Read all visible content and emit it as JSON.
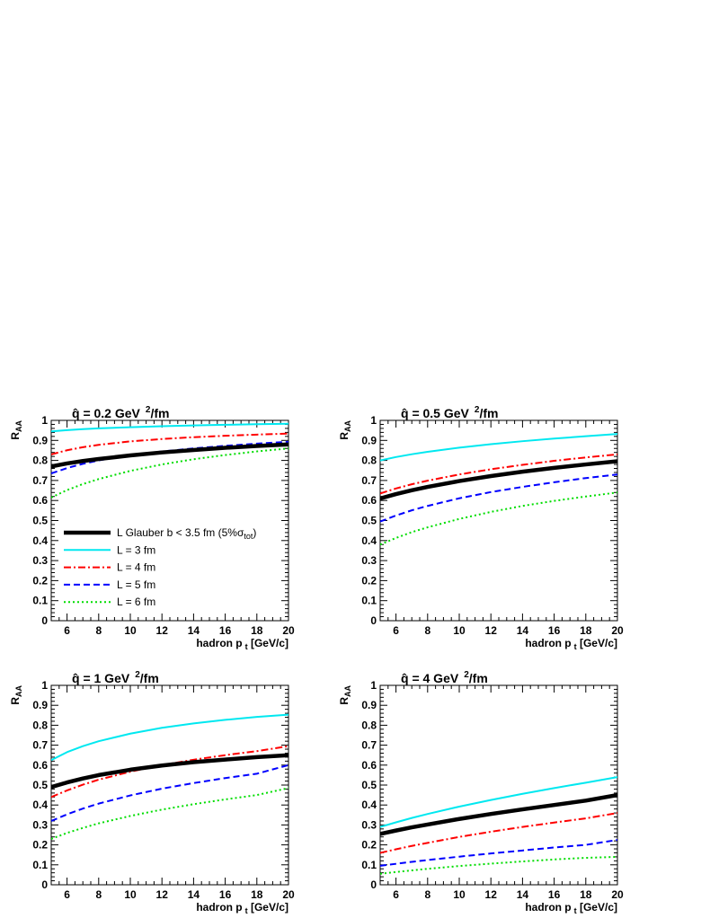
{
  "chart_data": [
    {
      "type": "line",
      "title": {
        "prefix": "q̂ = 0.2 GeV",
        "sup": "2",
        "suffix": "/fm"
      },
      "xlabel": {
        "main": "hadron p",
        "sub": "t",
        "rest": " [GeV/c]"
      },
      "ylabel": {
        "main": "R",
        "sub": "AA"
      },
      "xlim": [
        5,
        20
      ],
      "ylim": [
        0,
        1
      ],
      "xticks": [
        "6",
        "8",
        "10",
        "12",
        "14",
        "16",
        "18",
        "20"
      ],
      "yticks": [
        "0",
        "0.1",
        "0.2",
        "0.3",
        "0.4",
        "0.5",
        "0.6",
        "0.7",
        "0.8",
        "0.9",
        "1"
      ],
      "grid": false,
      "legend": {
        "position": "lower-left",
        "entries": [
          {
            "series": "glauber",
            "text": "L Glauber b < 3.5 fm (5%σ",
            "sub": "tot",
            "tail": ")"
          },
          {
            "series": "L3",
            "text": "L = 3 fm"
          },
          {
            "series": "L4",
            "text": "L = 4 fm"
          },
          {
            "series": "L5",
            "text": "L = 5 fm"
          },
          {
            "series": "L6",
            "text": "L = 6 fm"
          }
        ]
      },
      "series": [
        {
          "id": "glauber",
          "color": "#000000",
          "dash": "solid",
          "width": 4.5,
          "x": [
            5,
            6,
            7,
            8,
            10,
            12,
            14,
            16,
            18,
            20
          ],
          "y": [
            0.77,
            0.785,
            0.797,
            0.807,
            0.825,
            0.84,
            0.852,
            0.863,
            0.872,
            0.88
          ]
        },
        {
          "id": "L3",
          "color": "#00e8f0",
          "dash": "solid",
          "width": 2,
          "x": [
            5,
            6,
            7,
            8,
            10,
            12,
            14,
            16,
            18,
            20
          ],
          "y": [
            0.945,
            0.951,
            0.956,
            0.96,
            0.966,
            0.971,
            0.975,
            0.978,
            0.981,
            0.983
          ]
        },
        {
          "id": "L4",
          "color": "#ff0000",
          "dash": "dashdot",
          "width": 2,
          "x": [
            5,
            6,
            7,
            8,
            10,
            12,
            14,
            16,
            18,
            20
          ],
          "y": [
            0.83,
            0.851,
            0.866,
            0.878,
            0.895,
            0.907,
            0.916,
            0.923,
            0.929,
            0.934
          ]
        },
        {
          "id": "L5",
          "color": "#0000ff",
          "dash": "dashed",
          "width": 2,
          "x": [
            5,
            6,
            7,
            8,
            10,
            12,
            14,
            16,
            18,
            20
          ],
          "y": [
            0.735,
            0.762,
            0.783,
            0.8,
            0.826,
            0.845,
            0.86,
            0.873,
            0.884,
            0.893
          ]
        },
        {
          "id": "L6",
          "color": "#00dd00",
          "dash": "dotted",
          "width": 2,
          "x": [
            5,
            6,
            7,
            8,
            10,
            12,
            14,
            16,
            18,
            20
          ],
          "y": [
            0.615,
            0.652,
            0.682,
            0.707,
            0.748,
            0.78,
            0.806,
            0.827,
            0.845,
            0.86
          ]
        }
      ]
    },
    {
      "type": "line",
      "title": {
        "prefix": "q̂ = 0.5 GeV",
        "sup": "2",
        "suffix": "/fm"
      },
      "xlabel": {
        "main": "hadron p",
        "sub": "t",
        "rest": " [GeV/c]"
      },
      "ylabel": {
        "main": "R",
        "sub": "AA"
      },
      "xlim": [
        5,
        20
      ],
      "ylim": [
        0,
        1
      ],
      "xticks": [
        "6",
        "8",
        "10",
        "12",
        "14",
        "16",
        "18",
        "20"
      ],
      "yticks": [
        "0",
        "0.1",
        "0.2",
        "0.3",
        "0.4",
        "0.5",
        "0.6",
        "0.7",
        "0.8",
        "0.9",
        "1"
      ],
      "grid": false,
      "series": [
        {
          "id": "glauber",
          "color": "#000000",
          "dash": "solid",
          "width": 4.5,
          "x": [
            5,
            6,
            7,
            8,
            10,
            12,
            14,
            16,
            18,
            20
          ],
          "y": [
            0.61,
            0.632,
            0.651,
            0.668,
            0.697,
            0.722,
            0.744,
            0.763,
            0.78,
            0.796
          ]
        },
        {
          "id": "L3",
          "color": "#00e8f0",
          "dash": "solid",
          "width": 2,
          "x": [
            5,
            6,
            7,
            8,
            10,
            12,
            14,
            16,
            18,
            20
          ],
          "y": [
            0.8,
            0.817,
            0.831,
            0.843,
            0.864,
            0.881,
            0.896,
            0.909,
            0.921,
            0.932
          ]
        },
        {
          "id": "L4",
          "color": "#ff0000",
          "dash": "dashdot",
          "width": 2,
          "x": [
            5,
            6,
            7,
            8,
            10,
            12,
            14,
            16,
            18,
            20
          ],
          "y": [
            0.635,
            0.66,
            0.681,
            0.699,
            0.73,
            0.756,
            0.778,
            0.798,
            0.815,
            0.83
          ]
        },
        {
          "id": "L5",
          "color": "#0000ff",
          "dash": "dashed",
          "width": 2,
          "x": [
            5,
            6,
            7,
            8,
            10,
            12,
            14,
            16,
            18,
            20
          ],
          "y": [
            0.495,
            0.525,
            0.551,
            0.573,
            0.611,
            0.642,
            0.668,
            0.691,
            0.712,
            0.73
          ]
        },
        {
          "id": "L6",
          "color": "#00dd00",
          "dash": "dotted",
          "width": 2,
          "x": [
            5,
            6,
            7,
            8,
            10,
            12,
            14,
            16,
            18,
            20
          ],
          "y": [
            0.38,
            0.413,
            0.442,
            0.466,
            0.508,
            0.543,
            0.573,
            0.598,
            0.62,
            0.64
          ]
        }
      ]
    },
    {
      "type": "line",
      "title": {
        "prefix": "q̂ = 1 GeV",
        "sup": "2",
        "suffix": "/fm"
      },
      "xlabel": {
        "main": "hadron p",
        "sub": "t",
        "rest": " [GeV/c]"
      },
      "ylabel": {
        "main": "R",
        "sub": "AA"
      },
      "xlim": [
        5,
        20
      ],
      "ylim": [
        0,
        1
      ],
      "xticks": [
        "6",
        "8",
        "10",
        "12",
        "14",
        "16",
        "18",
        "20"
      ],
      "yticks": [
        "0",
        "0.1",
        "0.2",
        "0.3",
        "0.4",
        "0.5",
        "0.6",
        "0.7",
        "0.8",
        "0.9",
        "1"
      ],
      "grid": false,
      "series": [
        {
          "id": "glauber",
          "color": "#000000",
          "dash": "solid",
          "width": 4.5,
          "x": [
            5,
            6,
            7,
            8,
            10,
            12,
            14,
            16,
            18,
            20
          ],
          "y": [
            0.49,
            0.513,
            0.533,
            0.55,
            0.577,
            0.598,
            0.615,
            0.628,
            0.64,
            0.65
          ]
        },
        {
          "id": "L3",
          "color": "#00e8f0",
          "dash": "solid",
          "width": 2,
          "x": [
            5,
            6,
            7,
            8,
            10,
            12,
            14,
            16,
            18,
            20
          ],
          "y": [
            0.625,
            0.665,
            0.695,
            0.72,
            0.758,
            0.787,
            0.809,
            0.827,
            0.842,
            0.853
          ]
        },
        {
          "id": "L4",
          "color": "#ff0000",
          "dash": "dashdot",
          "width": 2,
          "x": [
            5,
            6,
            7,
            8,
            10,
            12,
            14,
            16,
            18,
            20
          ],
          "y": [
            0.44,
            0.473,
            0.502,
            0.527,
            0.567,
            0.6,
            0.627,
            0.65,
            0.67,
            0.695
          ]
        },
        {
          "id": "L5",
          "color": "#0000ff",
          "dash": "dashed",
          "width": 2,
          "x": [
            5,
            6,
            7,
            8,
            10,
            12,
            14,
            16,
            18,
            20
          ],
          "y": [
            0.32,
            0.353,
            0.382,
            0.407,
            0.448,
            0.482,
            0.51,
            0.535,
            0.557,
            0.6
          ]
        },
        {
          "id": "L6",
          "color": "#00dd00",
          "dash": "dotted",
          "width": 2,
          "x": [
            5,
            6,
            7,
            8,
            10,
            12,
            14,
            16,
            18,
            20
          ],
          "y": [
            0.23,
            0.26,
            0.285,
            0.308,
            0.345,
            0.377,
            0.404,
            0.428,
            0.45,
            0.485
          ]
        }
      ]
    },
    {
      "type": "line",
      "title": {
        "prefix": "q̂ = 4 GeV",
        "sup": "2",
        "suffix": "/fm"
      },
      "xlabel": {
        "main": "hadron p",
        "sub": "t",
        "rest": " [GeV/c]"
      },
      "ylabel": {
        "main": "R",
        "sub": "AA"
      },
      "xlim": [
        5,
        20
      ],
      "ylim": [
        0,
        1
      ],
      "xticks": [
        "6",
        "8",
        "10",
        "12",
        "14",
        "16",
        "18",
        "20"
      ],
      "yticks": [
        "0",
        "0.1",
        "0.2",
        "0.3",
        "0.4",
        "0.5",
        "0.6",
        "0.7",
        "0.8",
        "0.9",
        "1"
      ],
      "grid": false,
      "series": [
        {
          "id": "glauber",
          "color": "#000000",
          "dash": "solid",
          "width": 4.5,
          "x": [
            5,
            6,
            7,
            8,
            10,
            12,
            14,
            16,
            18,
            20
          ],
          "y": [
            0.255,
            0.272,
            0.288,
            0.302,
            0.33,
            0.355,
            0.378,
            0.4,
            0.422,
            0.45
          ]
        },
        {
          "id": "L3",
          "color": "#00e8f0",
          "dash": "solid",
          "width": 2,
          "x": [
            5,
            6,
            7,
            8,
            10,
            12,
            14,
            16,
            18,
            20
          ],
          "y": [
            0.29,
            0.313,
            0.335,
            0.355,
            0.392,
            0.425,
            0.456,
            0.485,
            0.512,
            0.54
          ]
        },
        {
          "id": "L4",
          "color": "#ff0000",
          "dash": "dashdot",
          "width": 2,
          "x": [
            5,
            6,
            7,
            8,
            10,
            12,
            14,
            16,
            18,
            20
          ],
          "y": [
            0.16,
            0.178,
            0.195,
            0.21,
            0.24,
            0.266,
            0.29,
            0.312,
            0.333,
            0.36
          ]
        },
        {
          "id": "L5",
          "color": "#0000ff",
          "dash": "dashed",
          "width": 2,
          "x": [
            5,
            6,
            7,
            8,
            10,
            12,
            14,
            16,
            18,
            20
          ],
          "y": [
            0.095,
            0.105,
            0.115,
            0.124,
            0.141,
            0.157,
            0.172,
            0.187,
            0.2,
            0.225
          ]
        },
        {
          "id": "L6",
          "color": "#00dd00",
          "dash": "dotted",
          "width": 2,
          "x": [
            5,
            6,
            7,
            8,
            10,
            12,
            14,
            16,
            18,
            20
          ],
          "y": [
            0.055,
            0.064,
            0.072,
            0.08,
            0.094,
            0.106,
            0.117,
            0.127,
            0.135,
            0.14
          ]
        }
      ]
    }
  ]
}
